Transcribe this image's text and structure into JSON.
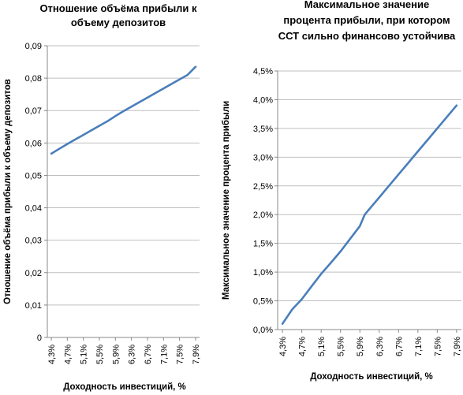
{
  "chart_data": [
    {
      "type": "line",
      "title": "Отношение объёма прибыли к объему депозитов",
      "title_lines": [
        "Отношение объёма прибыли к",
        "объему депозитов"
      ],
      "xlabel": "Доходность инвестиций, %",
      "ylabel": "Отношение объёма прибыли к объему депозитов",
      "x_tick_labels": [
        "4,3%",
        "4,7%",
        "5,1%",
        "5,5%",
        "5,9%",
        "6,3%",
        "6,7%",
        "7,1%",
        "7,5%",
        "7,9%"
      ],
      "y_tick_labels": [
        "0",
        "0,01",
        "0,02",
        "0,03",
        "0,04",
        "0,05",
        "0,06",
        "0,07",
        "0,08",
        "0,09"
      ],
      "ylim": [
        0,
        0.09
      ],
      "xlim": [
        4.2,
        8.0
      ],
      "grid": true,
      "legend": "none",
      "series": [
        {
          "color": "#4a7ebb",
          "x": [
            4.3,
            4.5,
            4.7,
            4.9,
            5.1,
            5.3,
            5.5,
            5.7,
            5.9,
            6.1,
            6.3,
            6.5,
            6.7,
            6.9,
            7.1,
            7.3,
            7.5,
            7.7,
            7.9
          ],
          "values": [
            0.0567,
            0.0582,
            0.0597,
            0.0611,
            0.0625,
            0.0639,
            0.0653,
            0.0667,
            0.0683,
            0.0698,
            0.0712,
            0.0726,
            0.074,
            0.0754,
            0.0768,
            0.0782,
            0.0796,
            0.081,
            0.0835
          ]
        }
      ]
    },
    {
      "type": "line",
      "title": "Максимальное значение процента прибыли, при котором ССТ сильно финансово устойчива",
      "title_lines": [
        "Максимальное значение",
        "процента прибыли, при котором",
        "ССТ сильно финансово устойчива"
      ],
      "xlabel": "Доходность инвестиций, %",
      "ylabel": "Максимальное значение процента прибыли",
      "x_tick_labels": [
        "4,3%",
        "4,7%",
        "5,1%",
        "5,5%",
        "5,9%",
        "6,3%",
        "6,7%",
        "7,1%",
        "7,5%",
        "7,9%"
      ],
      "y_tick_labels": [
        "0,0%",
        "0,5%",
        "1,0%",
        "1,5%",
        "2,0%",
        "2,5%",
        "3,0%",
        "3,5%",
        "4,0%",
        "4,5%"
      ],
      "ylim": [
        0,
        4.5
      ],
      "xlim": [
        4.2,
        8.0
      ],
      "grid": true,
      "legend": "none",
      "series": [
        {
          "color": "#4a7ebb",
          "x": [
            4.3,
            4.5,
            4.7,
            4.9,
            5.1,
            5.3,
            5.5,
            5.7,
            5.9,
            6.0,
            6.1,
            6.3,
            6.5,
            6.7,
            6.9,
            7.1,
            7.3,
            7.5,
            7.7,
            7.9
          ],
          "values": [
            0.1,
            0.35,
            0.53,
            0.75,
            0.97,
            1.16,
            1.36,
            1.58,
            1.8,
            2.0,
            2.1,
            2.3,
            2.5,
            2.7,
            2.9,
            3.1,
            3.3,
            3.5,
            3.7,
            3.9
          ]
        }
      ]
    }
  ]
}
